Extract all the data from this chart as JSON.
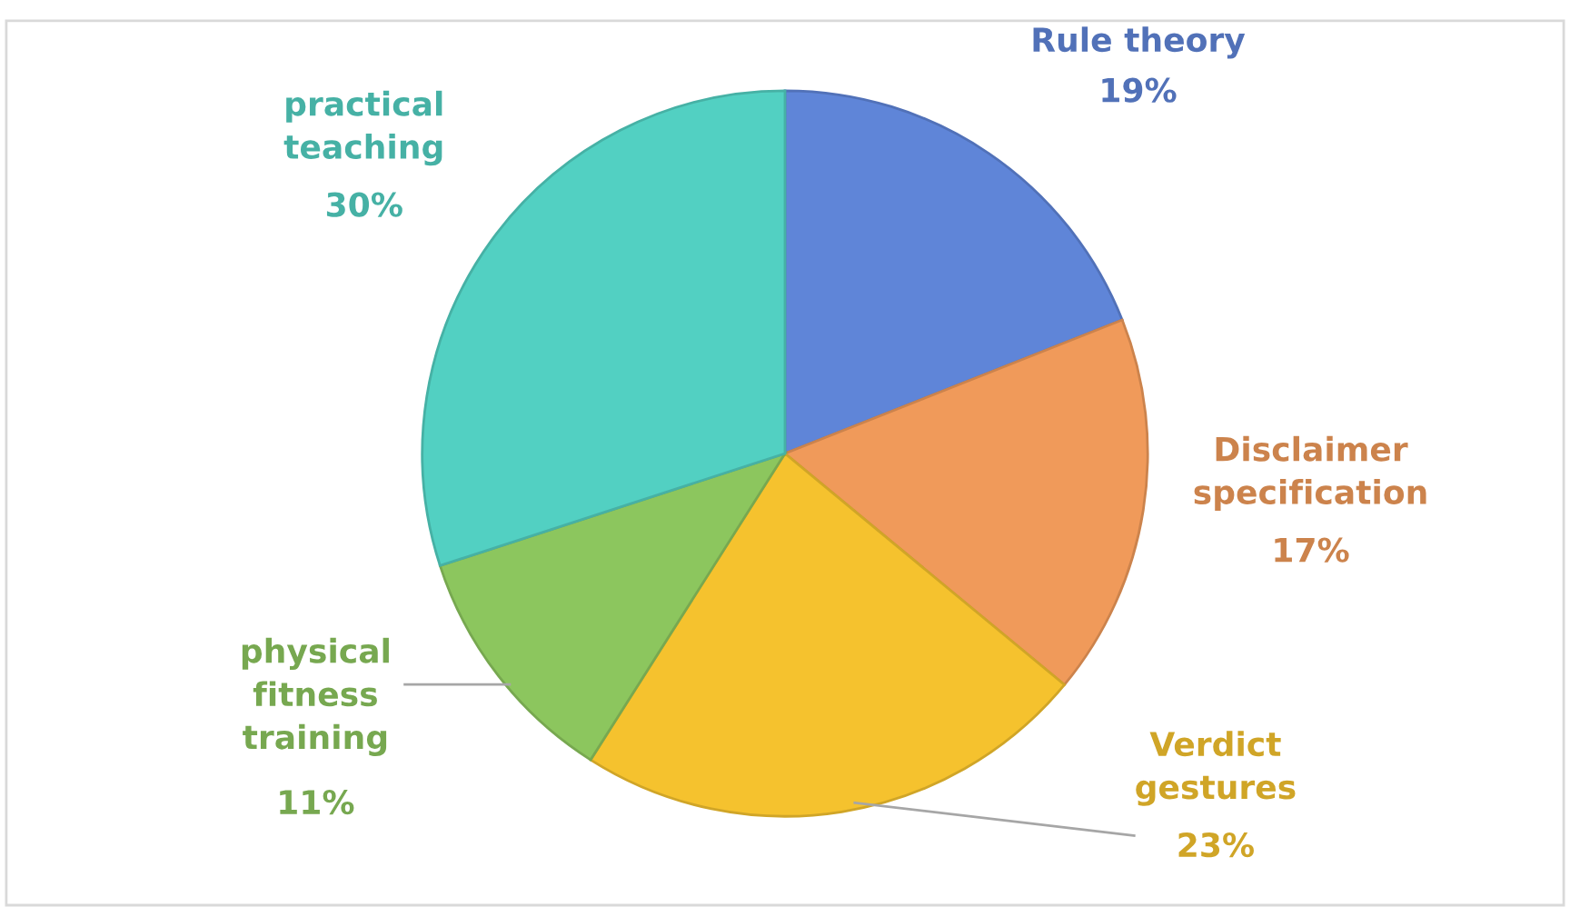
{
  "chart_data": {
    "type": "pie",
    "categories": [
      "Rule theory",
      "Disclaimer specification",
      "Verdict gestures",
      "physical fitness training",
      "practical teaching"
    ],
    "values": [
      19,
      17,
      23,
      11,
      30
    ],
    "colors": [
      "#5f85d8",
      "#f09a5a",
      "#f5c22e",
      "#8cc65e",
      "#52d0c2"
    ],
    "value_labels": [
      "19%",
      "17%",
      "23%",
      "11%",
      "30%"
    ],
    "legend": false
  }
}
